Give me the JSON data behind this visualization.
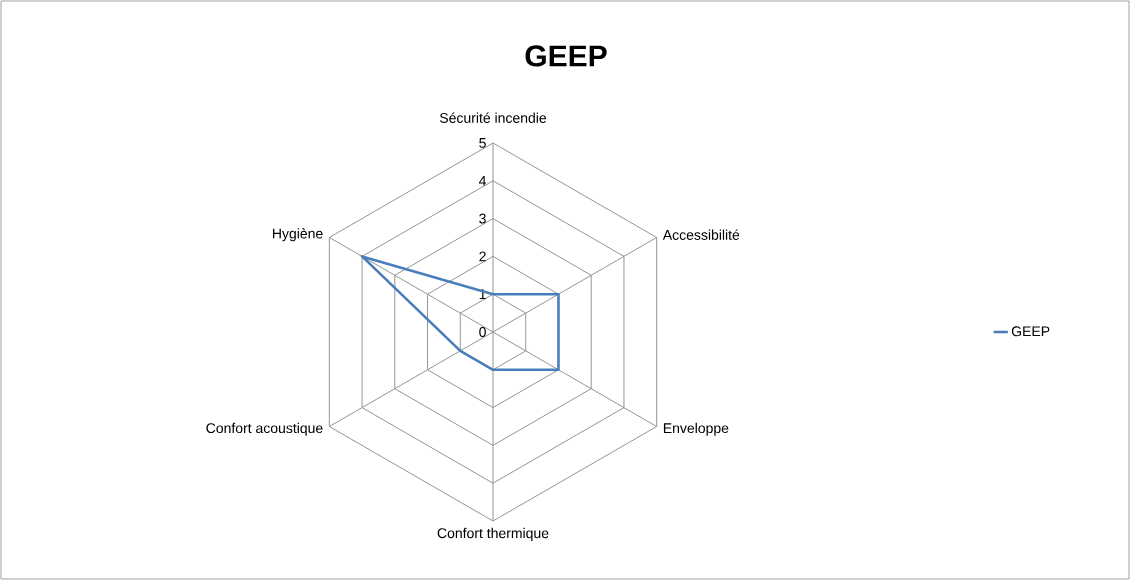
{
  "chart_data": {
    "type": "radar",
    "title": "GEEP",
    "categories": [
      "Sécurité incendie",
      "Accessibilité",
      "Enveloppe",
      "Confort thermique",
      "Confort acoustique",
      "Hygiène"
    ],
    "series": [
      {
        "name": "GEEP",
        "color": "#4a7ebb",
        "values": [
          1,
          2,
          2,
          1,
          1,
          4
        ]
      }
    ],
    "ylim": [
      0,
      5
    ],
    "yticks": [
      0,
      1,
      2,
      3,
      4,
      5
    ],
    "grid": true,
    "legend": "right"
  }
}
